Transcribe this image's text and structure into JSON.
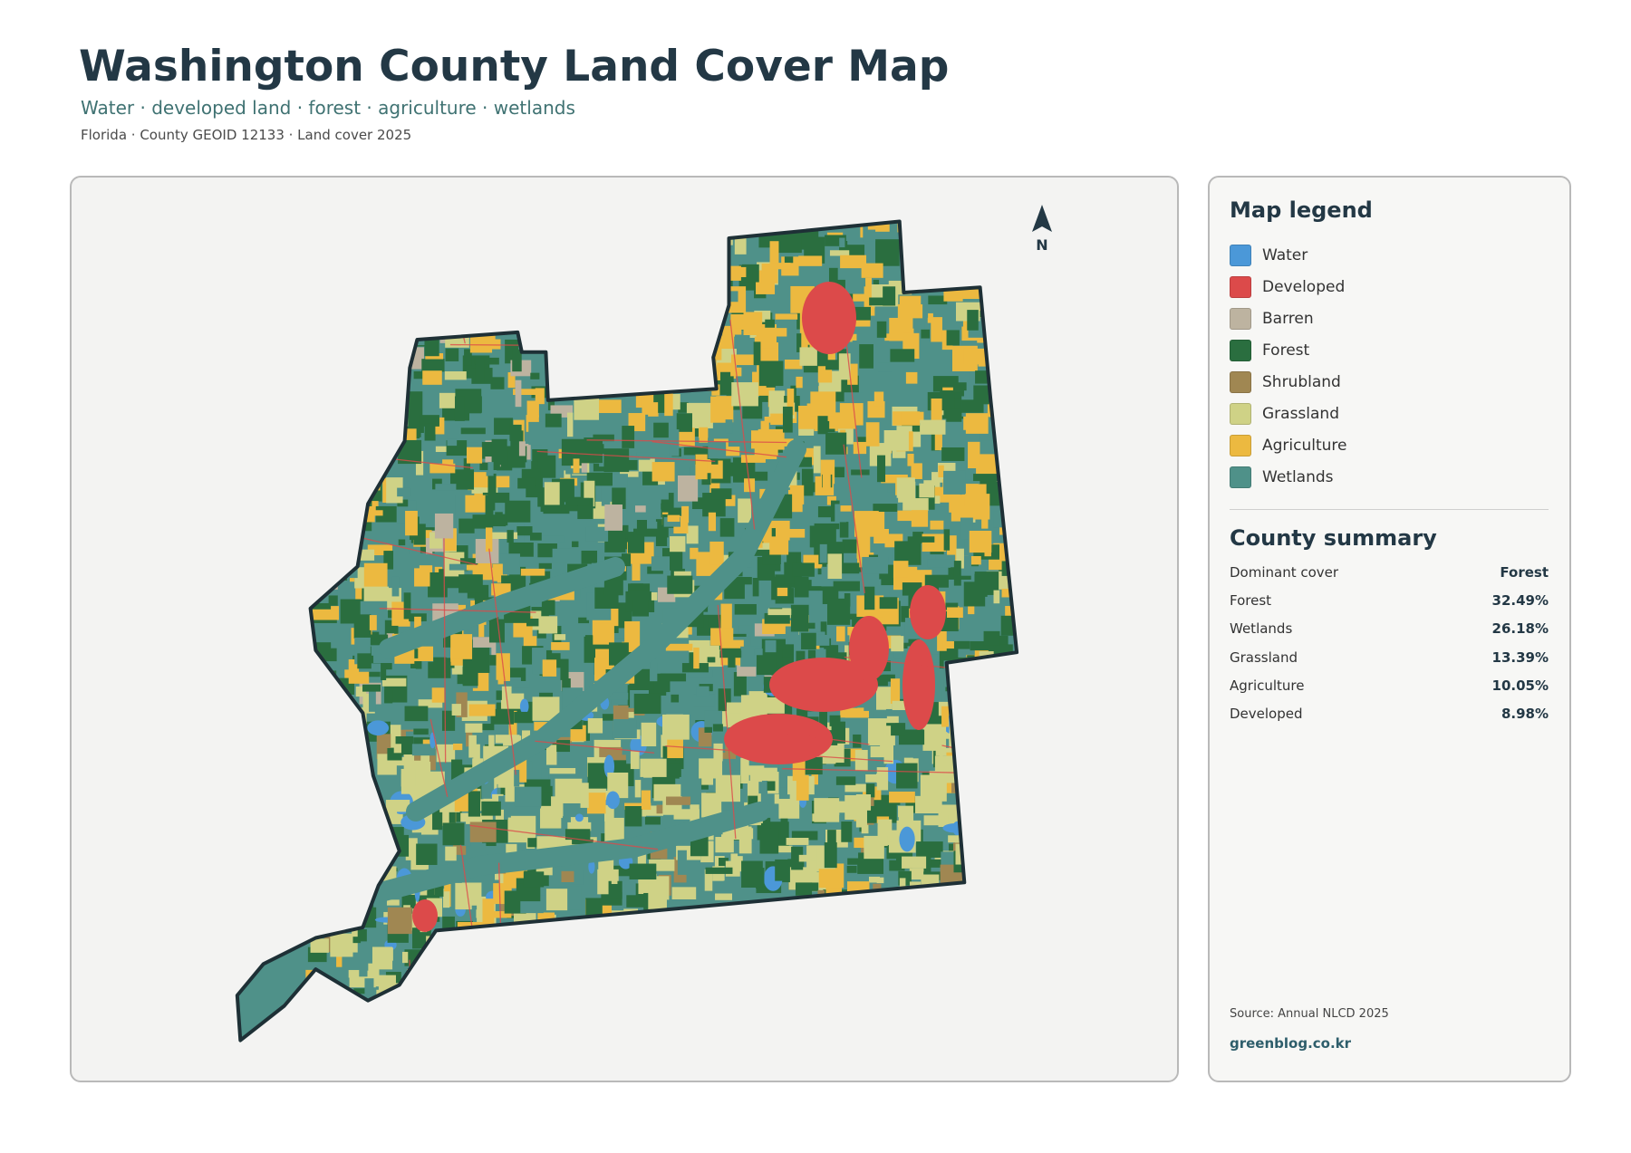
{
  "header": {
    "title": "Washington County Land Cover Map",
    "subtitle": "Water · developed land · forest · agriculture · wetlands",
    "meta": "Florida · County GEOID 12133 · Land cover 2025"
  },
  "map": {
    "north_label": "N"
  },
  "legend": {
    "title": "Map legend",
    "items": [
      {
        "label": "Water",
        "color": "#4b98d8"
      },
      {
        "label": "Developed",
        "color": "#dc4a4a"
      },
      {
        "label": "Barren",
        "color": "#bdb3a0"
      },
      {
        "label": "Forest",
        "color": "#2a6e3f"
      },
      {
        "label": "Shrubland",
        "color": "#a08752"
      },
      {
        "label": "Grassland",
        "color": "#cfd286"
      },
      {
        "label": "Agriculture",
        "color": "#ecb940"
      },
      {
        "label": "Wetlands",
        "color": "#4f9189"
      }
    ]
  },
  "summary": {
    "title": "County summary",
    "rows": [
      {
        "label": "Dominant cover",
        "value": "Forest"
      },
      {
        "label": "Forest",
        "value": "32.49%"
      },
      {
        "label": "Wetlands",
        "value": "26.18%"
      },
      {
        "label": "Grassland",
        "value": "13.39%"
      },
      {
        "label": "Agriculture",
        "value": "10.05%"
      },
      {
        "label": "Developed",
        "value": "8.98%"
      }
    ]
  },
  "footer": {
    "source": "Source: Annual NLCD 2025",
    "site": "greenblog.co.kr"
  }
}
